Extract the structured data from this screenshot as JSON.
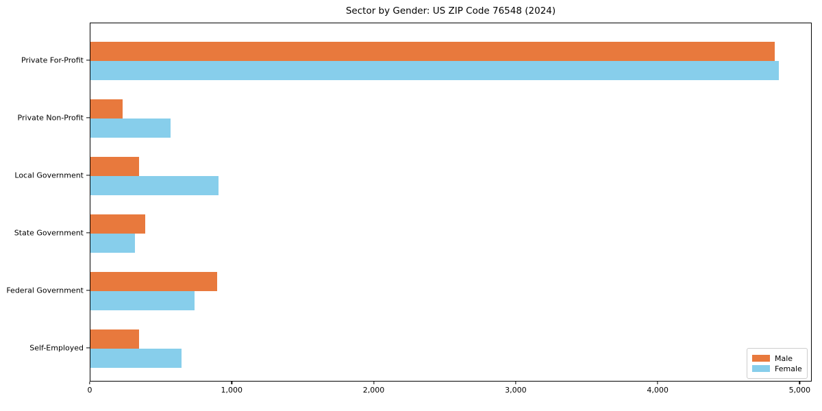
{
  "title": "Sector by Gender: US ZIP Code 76548 (2024)",
  "colors": {
    "male": "#E8793D",
    "female": "#87CEEB",
    "axis": "#000000",
    "legend_border": "#cccccc"
  },
  "legend": {
    "position": "lower right",
    "entries": [
      {
        "label": "Male",
        "color": "#E8793D"
      },
      {
        "label": "Female",
        "color": "#87CEEB"
      }
    ]
  },
  "chart_data": {
    "type": "bar",
    "orientation": "horizontal",
    "title": "Sector by Gender: US ZIP Code 76548 (2024)",
    "xlabel": "",
    "ylabel": "",
    "categories": [
      "Private For-Profit",
      "Private Non-Profit",
      "Local Government",
      "State Government",
      "Federal Government",
      "Self-Employed"
    ],
    "series": [
      {
        "name": "Male",
        "color": "#E8793D",
        "values": [
          4820,
          225,
          340,
          385,
          890,
          340
        ]
      },
      {
        "name": "Female",
        "color": "#87CEEB",
        "values": [
          4850,
          565,
          900,
          315,
          735,
          640
        ]
      }
    ],
    "xlim": [
      0,
      5085
    ],
    "xticks": [
      0,
      1000,
      2000,
      3000,
      4000,
      5000
    ],
    "xtick_labels": [
      "0",
      "1,000",
      "2,000",
      "3,000",
      "4,000",
      "5,000"
    ],
    "grid": false,
    "legend_position": "lower right"
  }
}
